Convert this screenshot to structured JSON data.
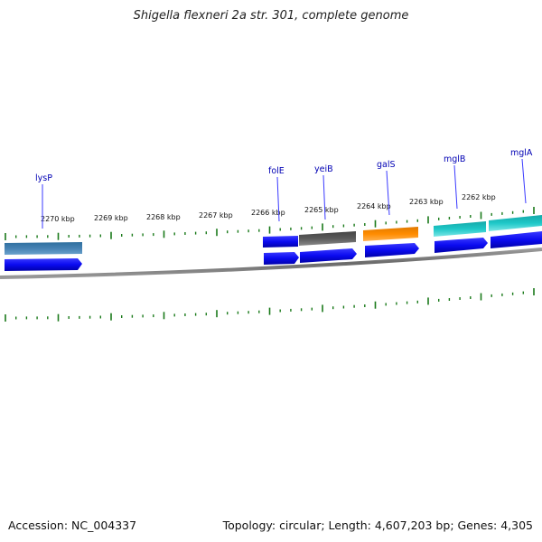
{
  "title": "Shigella flexneri 2a str. 301, complete genome",
  "accession_label": "Accession:",
  "accession": "NC_004337",
  "topology_label": "Topology:",
  "topology": "circular",
  "length_label": "Length:",
  "length": "4,607,203 bp",
  "genes_label": "Genes:",
  "genes_count": "4,305",
  "colors": {
    "gene_label": "#0000b4",
    "label_line": "#3a3aff",
    "tick": "#1a7a1a",
    "backbone": "#777777",
    "cds_blue": "#0a0af0",
    "gene_steelblue": "#4682b4",
    "gene_gray": "#5a5a5a",
    "gene_orange": "#ff8c00",
    "gene_cyan": "#1ec8c8"
  },
  "kbp_labels": [
    "2270 kbp",
    "2269 kbp",
    "2268 kbp",
    "2267 kbp",
    "2266 kbp",
    "2265 kbp",
    "2264 kbp",
    "2263 kbp",
    "2262 kbp"
  ],
  "gene_labels": [
    "lysP",
    "folE",
    "yeiB",
    "galS",
    "mglB",
    "mglA"
  ],
  "genes": [
    {
      "name": "lysP",
      "category": "steelblue"
    },
    {
      "name": "folE",
      "category": "blue"
    },
    {
      "name": "yeiB",
      "category": "gray"
    },
    {
      "name": "galS",
      "category": "orange"
    },
    {
      "name": "mglB",
      "category": "cyan"
    },
    {
      "name": "mglA",
      "category": "cyan"
    }
  ]
}
